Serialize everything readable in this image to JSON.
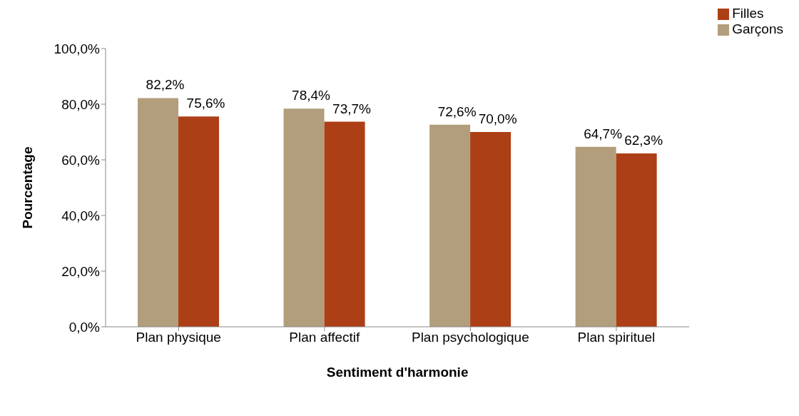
{
  "chart_data": {
    "type": "bar",
    "xlabel": "Sentiment d'harmonie",
    "ylabel": "Pourcentage",
    "categories": [
      "Plan physique",
      "Plan affectif",
      "Plan psychologique",
      "Plan spirituel"
    ],
    "series": [
      {
        "name": "Garçons",
        "color": "#b29e7c",
        "values": [
          82.2,
          78.4,
          72.6,
          64.7
        ],
        "value_labels": [
          "82,2%",
          "78,4%",
          "72,6%",
          "64,7%"
        ]
      },
      {
        "name": "Filles",
        "color": "#ad3f16",
        "values": [
          75.6,
          73.7,
          70.0,
          62.3
        ],
        "value_labels": [
          "75,6%",
          "73,7%",
          "70,0%",
          "62,3%"
        ]
      }
    ],
    "ylim": [
      0,
      100
    ],
    "yticks": [
      {
        "value": 0,
        "label": "0,0%"
      },
      {
        "value": 20,
        "label": "20,0%"
      },
      {
        "value": 40,
        "label": "40,0%"
      },
      {
        "value": 60,
        "label": "60,0%"
      },
      {
        "value": 80,
        "label": "80,0%"
      },
      {
        "value": 100,
        "label": "100,0%"
      }
    ],
    "grid": false,
    "legend": "top right"
  }
}
